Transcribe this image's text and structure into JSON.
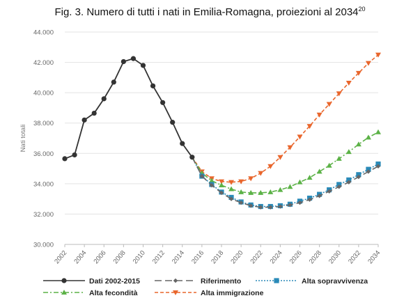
{
  "title": "Fig. 3. Numero di tutti i nati in Emilia-Romagna, proiezioni al 2034",
  "title_note": "20",
  "chart_data": {
    "type": "line",
    "title": "Fig. 3. Numero di tutti i nati in Emilia-Romagna, proiezioni al 2034",
    "xlabel": "",
    "ylabel": "Nati totali",
    "xlim": [
      2002,
      2034
    ],
    "ylim": [
      30000,
      44000
    ],
    "x_ticks": [
      2002,
      2004,
      2006,
      2008,
      2010,
      2012,
      2014,
      2016,
      2018,
      2020,
      2022,
      2024,
      2026,
      2028,
      2030,
      2032,
      2034
    ],
    "y_ticks": [
      30000,
      32000,
      34000,
      36000,
      38000,
      40000,
      42000,
      44000
    ],
    "y_tick_labels": [
      "30.000",
      "32.000",
      "34.000",
      "36.000",
      "38.000",
      "40.000",
      "42.000",
      "44.000"
    ],
    "grid": "horizontal",
    "legend_position": "bottom",
    "series": [
      {
        "name": "Dati 2002-2015",
        "color": "#333333",
        "dash": "solid",
        "marker": "circle",
        "x": [
          2002,
          2003,
          2004,
          2005,
          2006,
          2007,
          2008,
          2009,
          2010,
          2011,
          2012,
          2013,
          2014,
          2015
        ],
        "y": [
          35650,
          35900,
          38200,
          38650,
          39600,
          40700,
          42050,
          42250,
          41800,
          40450,
          39350,
          38050,
          36650,
          35750
        ]
      },
      {
        "name": "Riferimento",
        "color": "#666666",
        "dash": "longdash",
        "marker": "diamond",
        "x": [
          2015,
          2016,
          2017,
          2018,
          2019,
          2020,
          2021,
          2022,
          2023,
          2024,
          2025,
          2026,
          2027,
          2028,
          2029,
          2030,
          2031,
          2032,
          2033,
          2034
        ],
        "y": [
          35750,
          34500,
          33900,
          33400,
          33000,
          32750,
          32550,
          32450,
          32450,
          32500,
          32600,
          32750,
          32950,
          33200,
          33500,
          33800,
          34100,
          34450,
          34800,
          35150
        ]
      },
      {
        "name": "Alta sopravvivenza",
        "color": "#2a8ab8",
        "dash": "dotted",
        "marker": "square",
        "x": [
          2015,
          2016,
          2017,
          2018,
          2019,
          2020,
          2021,
          2022,
          2023,
          2024,
          2025,
          2026,
          2027,
          2028,
          2029,
          2030,
          2031,
          2032,
          2033,
          2034
        ],
        "y": [
          35750,
          34500,
          33950,
          33450,
          33100,
          32800,
          32600,
          32500,
          32500,
          32550,
          32650,
          32850,
          33050,
          33300,
          33600,
          33950,
          34250,
          34600,
          34950,
          35300
        ]
      },
      {
        "name": "Alta fecondità",
        "color": "#5cb247",
        "dash": "dashdot",
        "marker": "triangle-up",
        "x": [
          2015,
          2016,
          2017,
          2018,
          2019,
          2020,
          2021,
          2022,
          2023,
          2024,
          2025,
          2026,
          2027,
          2028,
          2029,
          2030,
          2031,
          2032,
          2033,
          2034
        ],
        "y": [
          35750,
          34700,
          34200,
          33900,
          33650,
          33450,
          33400,
          33400,
          33450,
          33600,
          33800,
          34100,
          34400,
          34800,
          35200,
          35650,
          36100,
          36600,
          37050,
          37400
        ]
      },
      {
        "name": "Alta immigrazione",
        "color": "#e9662c",
        "dash": "dashed",
        "marker": "triangle-down",
        "x": [
          2015,
          2016,
          2017,
          2018,
          2019,
          2020,
          2021,
          2022,
          2023,
          2024,
          2025,
          2026,
          2027,
          2028,
          2029,
          2030,
          2031,
          2032,
          2033,
          2034
        ],
        "y": [
          35750,
          34800,
          34350,
          34150,
          34100,
          34150,
          34350,
          34700,
          35150,
          35750,
          36400,
          37100,
          37800,
          38550,
          39250,
          39950,
          40650,
          41300,
          41950,
          42500
        ]
      }
    ]
  }
}
